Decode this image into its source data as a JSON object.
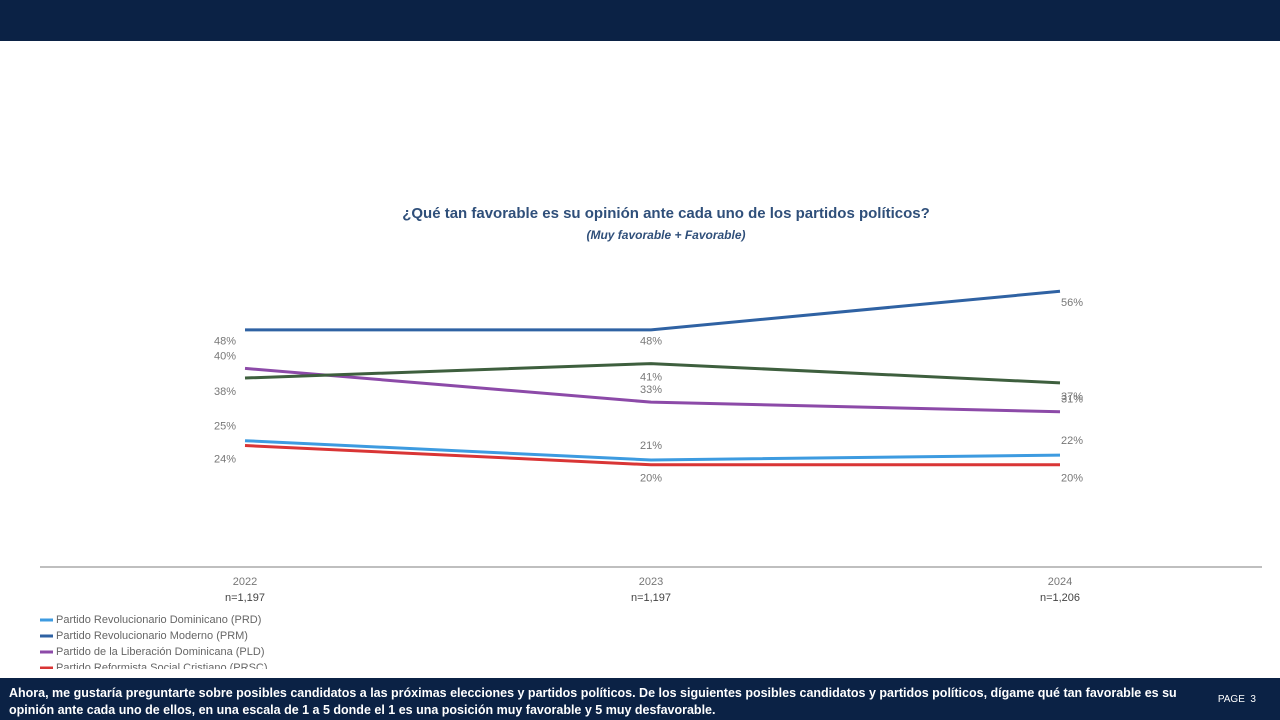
{
  "chart_data": {
    "type": "line",
    "title": "¿Qué tan favorable es su opinión ante cada uno de los partidos políticos?",
    "subtitle": "(Muy favorable + Favorable)",
    "categories": [
      "2022",
      "2023",
      "2024"
    ],
    "sample_sizes": [
      "n=1,197",
      "n=1,197",
      "n=1,206"
    ],
    "ylim": [
      10,
      60
    ],
    "series": [
      {
        "name": "Partido Revolucionario Dominicano (PRD)",
        "color": "#3d9be0",
        "values": [
          25,
          21,
          22
        ],
        "value_labels": [
          "25%",
          "21%",
          "22%"
        ]
      },
      {
        "name": "Partido Revolucionario Moderno (PRM)",
        "color": "#2f62a3",
        "values": [
          48,
          48,
          56
        ],
        "value_labels": [
          "48%",
          "48%",
          "56%"
        ]
      },
      {
        "name": "Partido de la Liberación Dominicana (PLD)",
        "color": "#8c4aa8",
        "values": [
          40,
          33,
          31
        ],
        "value_labels": [
          "40%",
          "33%",
          "31%"
        ]
      },
      {
        "name": "Partido Reformista Social Cristiano (PRSC)",
        "color": "#d93535",
        "values": [
          24,
          20,
          20
        ],
        "value_labels": [
          "24%",
          "20%",
          "20%"
        ]
      },
      {
        "color": "#3e5f3e",
        "values": [
          38,
          41,
          37
        ],
        "value_labels": [
          "38%",
          "41%",
          "37%"
        ]
      }
    ]
  },
  "footer": {
    "text": "Ahora, me gustaría preguntarte sobre posibles candidatos a las próximas elecciones y partidos políticos. De los siguientes posibles candidatos y partidos políticos, dígame qué tan favorable es su opinión ante cada uno de ellos, en una escala de 1 a 5 donde el 1 es una posición muy favorable y 5 muy desfavorable.",
    "page": "PAGE  3"
  }
}
